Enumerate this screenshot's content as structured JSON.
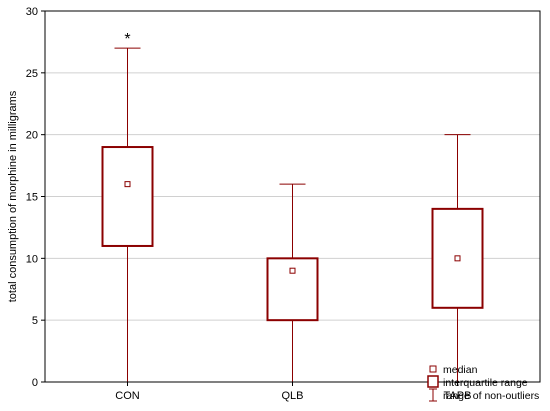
{
  "chart_data": {
    "type": "box",
    "ylabel": "total consumption of morphine in milligrams",
    "ylim": [
      0,
      30
    ],
    "y_ticks": [
      0,
      5,
      10,
      15,
      20,
      25,
      30
    ],
    "grid": true,
    "legend_position": "bottom-right",
    "categories": [
      "CON",
      "QLB",
      "TAPB"
    ],
    "boxes": [
      {
        "category": "CON",
        "whisker_low": 0,
        "q1": 11,
        "median": 16,
        "q3": 19,
        "whisker_high": 27,
        "outliers": [],
        "extremes_marker": "*"
      },
      {
        "category": "QLB",
        "whisker_low": 0,
        "q1": 5,
        "median": 9,
        "q3": 10,
        "whisker_high": 16,
        "outliers": []
      },
      {
        "category": "TAPB",
        "whisker_low": 0,
        "q1": 6,
        "median": 10,
        "q3": 14,
        "whisker_high": 20,
        "outliers": []
      }
    ],
    "legend": [
      {
        "symbol": "median-square",
        "label": "median"
      },
      {
        "symbol": "box",
        "label": "interquartile range"
      },
      {
        "symbol": "whisker",
        "label": "range of non-outliers"
      }
    ],
    "colors": {
      "box": "#8b0000",
      "grid": "#d0d0d0",
      "axis": "#000000"
    }
  }
}
